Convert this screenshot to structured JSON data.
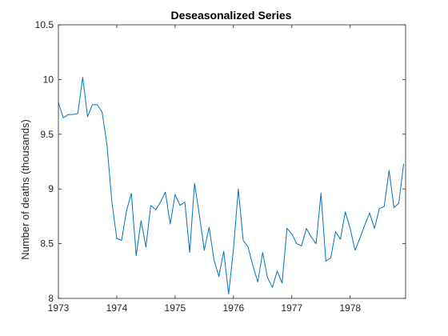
{
  "chart_data": {
    "type": "line",
    "title": "Deseasonalized Series",
    "xlabel": "",
    "ylabel": "Number of deaths (thousands)",
    "xlim": [
      1973,
      1978.95
    ],
    "ylim": [
      8,
      10.5
    ],
    "xticks": [
      1973,
      1974,
      1975,
      1976,
      1977,
      1978
    ],
    "xtick_labels": [
      "1973",
      "1974",
      "1975",
      "1976",
      "1977",
      "1978"
    ],
    "yticks": [
      8,
      8.5,
      9,
      9.5,
      10,
      10.5
    ],
    "ytick_labels": [
      "8",
      "8.5",
      "9",
      "9.5",
      "10",
      "10.5"
    ],
    "grid": false,
    "legend": "none",
    "series": [
      {
        "color": "#0072BD",
        "x": [
          1973.0,
          1973.0833,
          1973.1667,
          1973.25,
          1973.3333,
          1973.4167,
          1973.5,
          1973.5833,
          1973.6667,
          1973.75,
          1973.8333,
          1973.9167,
          1974.0,
          1974.0833,
          1974.1667,
          1974.25,
          1974.3333,
          1974.4167,
          1974.5,
          1974.5833,
          1974.6667,
          1974.75,
          1974.8333,
          1974.9167,
          1975.0,
          1975.0833,
          1975.1667,
          1975.25,
          1975.3333,
          1975.4167,
          1975.5,
          1975.5833,
          1975.6667,
          1975.75,
          1975.8333,
          1975.9167,
          1976.0,
          1976.0833,
          1976.1667,
          1976.25,
          1976.3333,
          1976.4167,
          1976.5,
          1976.5833,
          1976.6667,
          1976.75,
          1976.8333,
          1976.9167,
          1977.0,
          1977.0833,
          1977.1667,
          1977.25,
          1977.3333,
          1977.4167,
          1977.5,
          1977.5833,
          1977.6667,
          1977.75,
          1977.8333,
          1977.9167,
          1978.0,
          1978.0833,
          1978.1667,
          1978.25,
          1978.3333,
          1978.4167,
          1978.5,
          1978.5833,
          1978.6667,
          1978.75,
          1978.8333,
          1978.9167
        ],
        "y": [
          9.79,
          9.65,
          9.68,
          9.68,
          9.69,
          10.02,
          9.66,
          9.77,
          9.77,
          9.7,
          9.4,
          8.88,
          8.55,
          8.53,
          8.8,
          8.96,
          8.39,
          8.71,
          8.47,
          8.85,
          8.81,
          8.88,
          8.97,
          8.68,
          8.95,
          8.85,
          8.88,
          8.42,
          9.05,
          8.76,
          8.44,
          8.65,
          8.35,
          8.2,
          8.43,
          8.04,
          8.45,
          9.0,
          8.53,
          8.47,
          8.3,
          8.15,
          8.42,
          8.19,
          8.1,
          8.25,
          8.14,
          8.64,
          8.59,
          8.5,
          8.48,
          8.64,
          8.56,
          8.5,
          8.96,
          8.34,
          8.37,
          8.61,
          8.54,
          8.79,
          8.64,
          8.44,
          8.55,
          8.67,
          8.78,
          8.64,
          8.82,
          8.84,
          9.17,
          8.83,
          8.87,
          9.23
        ]
      }
    ]
  }
}
